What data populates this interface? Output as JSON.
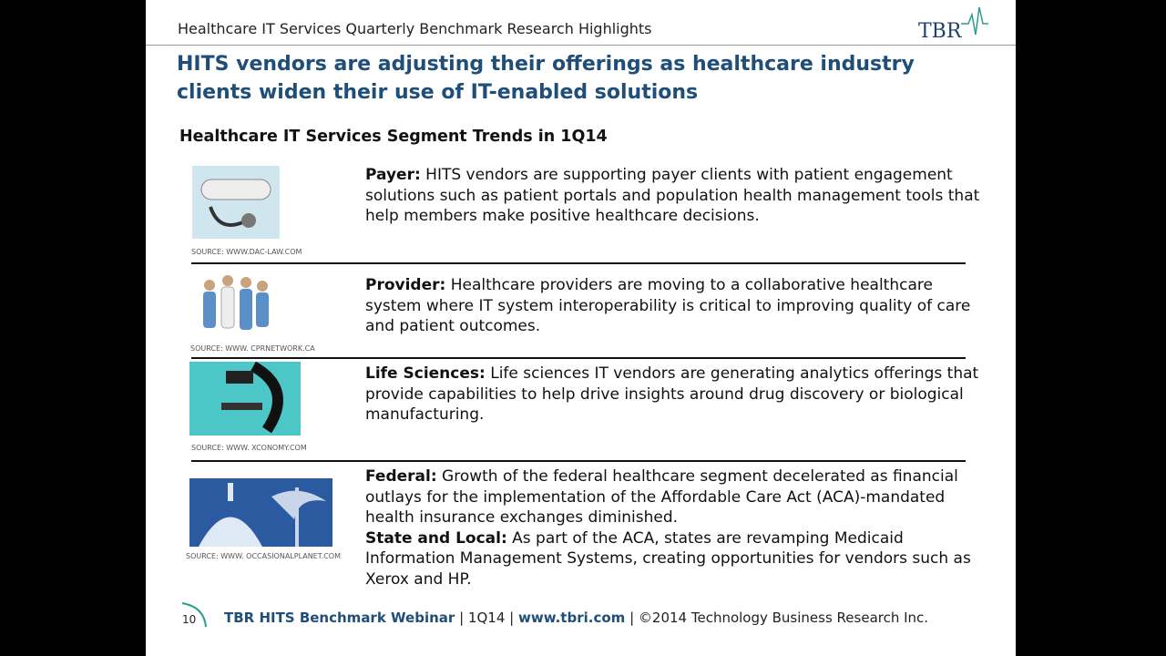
{
  "header": {
    "title": "Healthcare IT Services Quarterly Benchmark Research Highlights",
    "logo": "TBR"
  },
  "slide": {
    "title": "HITS vendors are adjusting their offerings as healthcare industry clients widen their use of IT-enabled solutions",
    "subtitle": "Healthcare IT Services Segment Trends in 1Q14"
  },
  "segments": [
    {
      "source": "SOURCE: WWW.DAC-LAW.COM",
      "entries": [
        {
          "label": "Payer:",
          "text": "HITS vendors are supporting payer clients with patient engagement solutions such as patient portals and population health management tools that help members make positive healthcare decisions."
        }
      ]
    },
    {
      "source": "SOURCE: WWW. CPRNETWORK.CA",
      "entries": [
        {
          "label": "Provider:",
          "text": "Healthcare providers are moving to a collaborative healthcare system where IT system interoperability is critical to improving quality of care and patient outcomes."
        }
      ]
    },
    {
      "source": "SOURCE: WWW. XCONOMY.COM",
      "entries": [
        {
          "label": "Life Sciences:",
          "text": "Life sciences IT vendors are generating analytics offerings that provide capabilities to help drive insights around drug discovery or biological manufacturing."
        }
      ]
    },
    {
      "source": "SOURCE: WWW. OCCASIONALPLANET.COM",
      "entries": [
        {
          "label": "Federal:",
          "text": "Growth of the federal healthcare segment decelerated as financial outlays for the implementation of the Affordable Care Act (ACA)-mandated health insurance exchanges diminished."
        },
        {
          "label": "State and Local:",
          "text": "As part of the ACA, states are revamping Medicaid Information Management Systems, creating opportunities for vendors such as Xerox and HP."
        }
      ]
    }
  ],
  "footer": {
    "page": "10",
    "event": "TBR HITS Benchmark Webinar",
    "separator": "|",
    "quarter": "1Q14",
    "url": "www.tbri.com",
    "copyright": "©2014 Technology Business Research Inc."
  }
}
